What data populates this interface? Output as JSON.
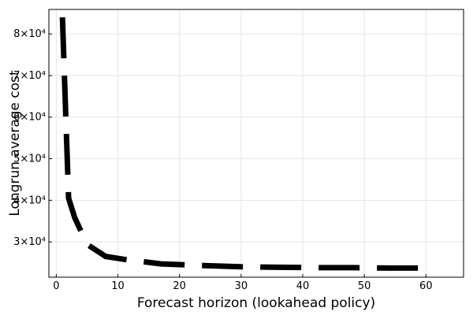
{
  "chart_data": {
    "type": "line",
    "x_label": "Forecast horizon (lookahead policy)",
    "y_label": "Longrun average cost",
    "x": [
      1,
      2,
      3,
      5,
      8,
      11,
      17,
      24,
      30,
      36,
      42,
      48,
      54,
      61
    ],
    "series": [
      {
        "name": "Longrun average cost",
        "color": "#000000",
        "values": [
          84000,
          40500,
          35800,
          29400,
          26500,
          25800,
          24700,
          24300,
          24000,
          23900,
          23800,
          23800,
          23700,
          23700
        ]
      }
    ],
    "xlim": [
      -1.2,
      66.1
    ],
    "xticks": [
      0,
      10,
      20,
      30,
      40,
      50,
      60
    ],
    "ylim": [
      21500,
      85900
    ],
    "yticks": [
      {
        "value": 30000,
        "label": "3×10⁴"
      },
      {
        "value": 40000,
        "label": "4×10⁴"
      },
      {
        "value": 50000,
        "label": "5×10⁴"
      },
      {
        "value": 60000,
        "label": "6×10⁴"
      },
      {
        "value": 70000,
        "label": "7×10⁴"
      },
      {
        "value": 80000,
        "label": "8×10⁴"
      }
    ],
    "grid": true,
    "line_style": "dashed"
  }
}
